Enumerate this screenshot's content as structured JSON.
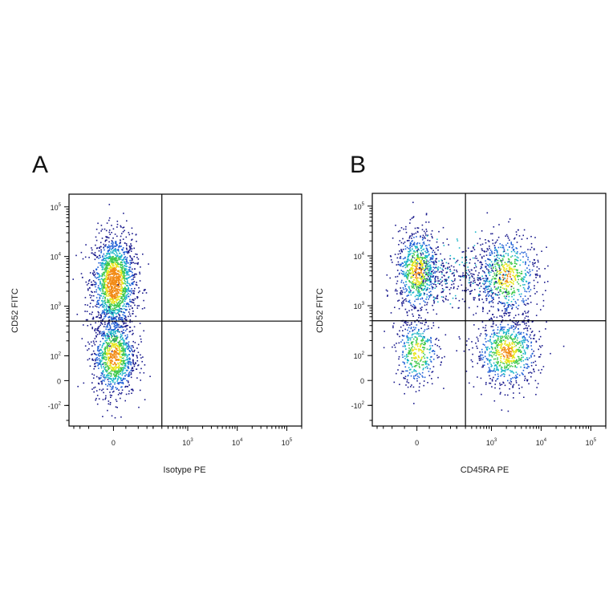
{
  "colors": {
    "density_low": "#1a1a8c",
    "density_mid_low": "#1f5fd6",
    "density_mid": "#19b5c9",
    "density_mid_high": "#3ec94a",
    "density_high": "#e8e51a",
    "density_peak": "#f28a14"
  },
  "chart_data": [
    {
      "type": "scatter",
      "panel_label": "A",
      "xlabel": "Isotype PE",
      "ylabel": "CD52 FITC",
      "x_scale": "biexponential",
      "y_scale": "biexponential",
      "x_ticks": [
        {
          "base": "0",
          "exp": ""
        },
        {
          "base": "10",
          "exp": "3"
        },
        {
          "base": "10",
          "exp": "4"
        },
        {
          "base": "10",
          "exp": "5"
        }
      ],
      "y_ticks": [
        {
          "base": "-10",
          "exp": "2"
        },
        {
          "base": "0",
          "exp": ""
        },
        {
          "base": "10",
          "exp": "2"
        },
        {
          "base": "10",
          "exp": "3"
        },
        {
          "base": "10",
          "exp": "4"
        },
        {
          "base": "10",
          "exp": "5"
        }
      ],
      "quadrant_gate": {
        "x": 300,
        "y": 500
      },
      "grid": false,
      "clusters": [
        {
          "x_center": 0,
          "y_center": 3000,
          "relative_count": 0.62
        },
        {
          "x_center": 0,
          "y_center": 100,
          "relative_count": 0.38
        }
      ]
    },
    {
      "type": "scatter",
      "panel_label": "B",
      "xlabel": "CD45RA PE",
      "ylabel": "CD52 FITC",
      "x_scale": "biexponential",
      "y_scale": "biexponential",
      "x_ticks": [
        {
          "base": "0",
          "exp": ""
        },
        {
          "base": "10",
          "exp": "3"
        },
        {
          "base": "10",
          "exp": "4"
        },
        {
          "base": "10",
          "exp": "5"
        }
      ],
      "y_ticks": [
        {
          "base": "-10",
          "exp": "2"
        },
        {
          "base": "0",
          "exp": ""
        },
        {
          "base": "10",
          "exp": "2"
        },
        {
          "base": "10",
          "exp": "3"
        },
        {
          "base": "10",
          "exp": "4"
        },
        {
          "base": "10",
          "exp": "5"
        }
      ],
      "quadrant_gate": {
        "x": 300,
        "y": 500
      },
      "grid": false,
      "clusters": [
        {
          "x_center": 0,
          "y_center": 5000,
          "relative_count": 0.3
        },
        {
          "x_center": 2000,
          "y_center": 4000,
          "relative_count": 0.25
        },
        {
          "x_center": 2000,
          "y_center": 120,
          "relative_count": 0.3
        },
        {
          "x_center": 0,
          "y_center": 120,
          "relative_count": 0.15
        }
      ]
    }
  ]
}
